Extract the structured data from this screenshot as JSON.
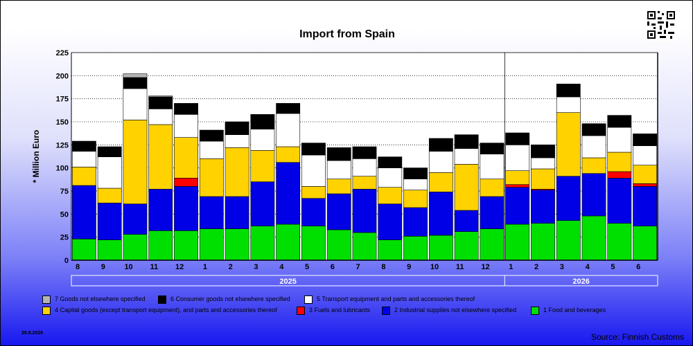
{
  "header": {
    "title": "Import from Spain"
  },
  "footer": {
    "date": "28.8.2026",
    "source": "Source: Finnish Customs"
  },
  "colors": {
    "food": "#00e000",
    "industrial": "#0000e6",
    "fuels": "#ff0000",
    "capital": "#ffd200",
    "transport": "#ffffff",
    "consumer": "#000000",
    "other": "#b4b4b4"
  },
  "legend": [
    {
      "label": "7 Goods not elsewhere specified",
      "color": "#b4b4b4"
    },
    {
      "label": "6 Consumer goods not elsewhere specified",
      "color": "#000000"
    },
    {
      "label": "5  Transport equipment and parts and accessories thereof",
      "color": "#ffffff"
    },
    {
      "label": "4 Capital goods (except transport equipment), and parts and accessories thereof",
      "color": "#ffd200"
    },
    {
      "label": "3 Fuels and lubricants",
      "color": "#ff0000"
    },
    {
      "label": "2 Industrial supplies not elsewhere specified",
      "color": "#0000e6"
    },
    {
      "label": "1 Food and beverages",
      "color": "#00e000"
    }
  ],
  "chart_data": {
    "type": "bar",
    "stacked": true,
    "title": "Import from Spain",
    "ylabel": "* Million Euro",
    "ylim": [
      0,
      225
    ],
    "yticks": [
      0,
      25,
      50,
      75,
      100,
      125,
      150,
      175,
      200,
      225
    ],
    "grid": "horizontal dotted",
    "categories": [
      "8",
      "9",
      "10",
      "11",
      "12",
      "1",
      "2",
      "3",
      "4",
      "5",
      "6",
      "7",
      "8",
      "9",
      "10",
      "11",
      "12",
      "1",
      "2",
      "3",
      "4",
      "5",
      "6"
    ],
    "years": [
      {
        "label": "2025",
        "start": 0,
        "end": 17
      },
      {
        "label": "2026",
        "start": 17,
        "end": 23
      }
    ],
    "series": [
      {
        "name": "1 Food and beverages",
        "values": [
          23,
          22,
          28,
          32,
          32,
          34,
          34,
          37,
          39,
          37,
          33,
          30,
          22,
          26,
          27,
          31,
          34,
          39,
          40,
          43,
          48,
          40,
          37
        ]
      },
      {
        "name": "2 Industrial supplies not elsewhere specified",
        "values": [
          58,
          40,
          33,
          45,
          48,
          35,
          35,
          48,
          67,
          30,
          39,
          47,
          39,
          31,
          47,
          23,
          35,
          40,
          36,
          48,
          46,
          49,
          43
        ]
      },
      {
        "name": "3 Fuels and lubricants",
        "values": [
          0,
          0,
          0,
          0,
          9,
          0,
          0,
          0,
          0,
          0,
          0,
          0,
          0,
          0,
          0,
          0,
          0,
          3,
          1,
          0,
          0,
          7,
          3
        ]
      },
      {
        "name": "4 Capital goods (except transport equipment), and parts and accessories thereof",
        "values": [
          20,
          16,
          91,
          70,
          44,
          41,
          53,
          34,
          17,
          13,
          16,
          14,
          18,
          19,
          21,
          50,
          19,
          15,
          22,
          69,
          17,
          21,
          20
        ]
      },
      {
        "name": "5  Transport equipment and parts and accessories thereof",
        "values": [
          17,
          34,
          34,
          17,
          25,
          19,
          14,
          23,
          36,
          34,
          20,
          19,
          21,
          12,
          23,
          17,
          27,
          28,
          12,
          17,
          24,
          27,
          21
        ]
      },
      {
        "name": "6 Consumer goods not elsewhere specified",
        "values": [
          11,
          11,
          12,
          13,
          12,
          12,
          14,
          16,
          11,
          13,
          14,
          13,
          12,
          12,
          14,
          15,
          12,
          13,
          14,
          14,
          13,
          13,
          13
        ]
      },
      {
        "name": "7 Goods not elsewhere specified",
        "values": [
          0,
          0,
          4,
          1,
          0,
          0,
          0,
          0,
          0,
          0,
          0,
          0,
          0,
          0,
          0,
          0,
          0,
          0,
          0,
          0,
          0,
          0,
          0
        ]
      }
    ]
  }
}
